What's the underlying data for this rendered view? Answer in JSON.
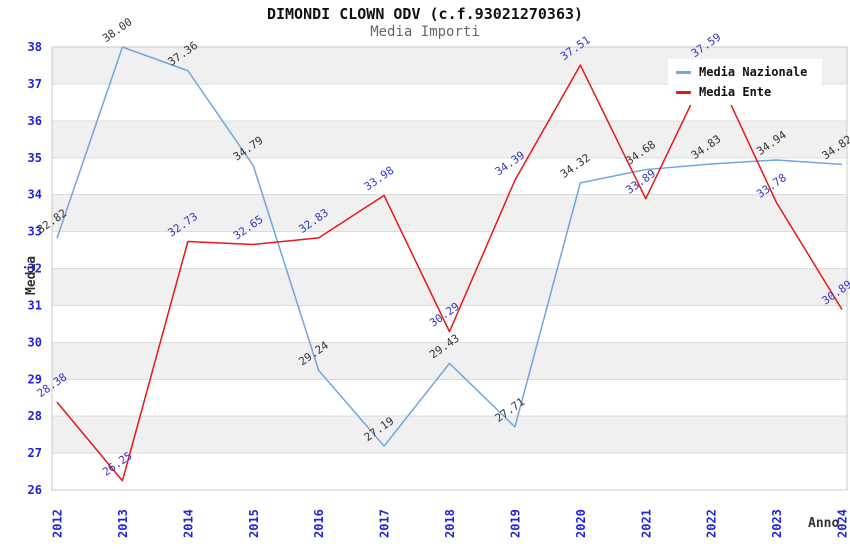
{
  "chart_data": {
    "type": "line",
    "title": "DIMONDI CLOWN ODV (c.f.93021270363)",
    "subtitle": "Media Importi",
    "xlabel": "Anno",
    "ylabel": "Media",
    "x": [
      "2012",
      "2013",
      "2014",
      "2015",
      "2016",
      "2017",
      "2018",
      "2019",
      "2020",
      "2021",
      "2022",
      "2023",
      "2024"
    ],
    "y_ticks": [
      26,
      27,
      28,
      29,
      30,
      31,
      32,
      33,
      34,
      35,
      36,
      37,
      38
    ],
    "ylim": [
      26,
      38
    ],
    "grid": true,
    "legend_position": "top-right",
    "series": [
      {
        "name": "Media Nazionale",
        "color": "#6EA6E0",
        "label_color": "#333333",
        "values": [
          32.82,
          38.0,
          37.36,
          34.79,
          29.24,
          27.19,
          29.43,
          27.71,
          34.32,
          34.68,
          34.83,
          34.94,
          34.82
        ]
      },
      {
        "name": "Media Ente",
        "color": "#E81717",
        "label_color": "#3434C8",
        "values": [
          28.38,
          26.25,
          32.73,
          32.65,
          32.83,
          33.98,
          30.29,
          34.39,
          37.51,
          33.89,
          37.59,
          33.78,
          30.89
        ]
      }
    ]
  },
  "colors": {
    "title": "#111111",
    "subtitle": "#666666",
    "axis_tick": "#2222DD",
    "axis_title": "#333333",
    "grid_line": "#DCDCDC",
    "band": "#F0F0F0",
    "frame": "#C8C8C8",
    "background": "#FFFFFF",
    "legend_bg": "#FFFFFF",
    "legend_text": "#111111"
  }
}
